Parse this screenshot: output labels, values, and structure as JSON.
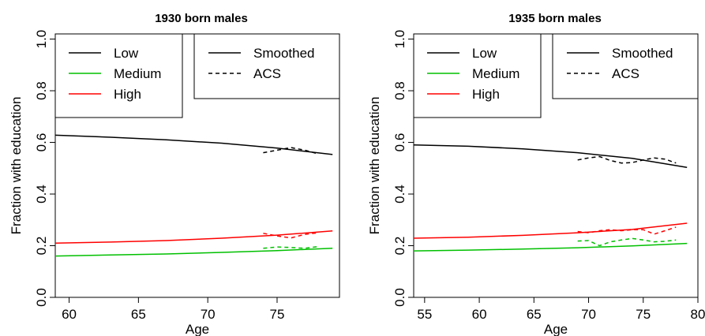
{
  "chart_data": [
    {
      "type": "line",
      "title": "1930 born males",
      "xlabel": "Age",
      "ylabel": "Fraction with education",
      "xlim": [
        59,
        79.5
      ],
      "ylim": [
        0,
        1.02
      ],
      "xticks": [
        60,
        65,
        70,
        75
      ],
      "yticks": [
        "0.0",
        "0.2",
        "0.4",
        "0.6",
        "0.8",
        "1.0"
      ],
      "legend_education": [
        "Low",
        "Medium",
        "High"
      ],
      "legend_type": [
        "Smoothed",
        "ACS"
      ],
      "colors": {
        "low": "#000000",
        "medium": "#00c000",
        "high": "#ff0000"
      },
      "series": [
        {
          "name": "Low",
          "style": "Smoothed",
          "color": "#000000",
          "x": [
            59,
            63,
            67,
            71,
            75,
            79
          ],
          "y": [
            0.628,
            0.62,
            0.61,
            0.597,
            0.578,
            0.553
          ]
        },
        {
          "name": "Medium",
          "style": "Smoothed",
          "color": "#00c000",
          "x": [
            59,
            63,
            67,
            71,
            75,
            79
          ],
          "y": [
            0.16,
            0.164,
            0.168,
            0.174,
            0.181,
            0.19
          ]
        },
        {
          "name": "High",
          "style": "Smoothed",
          "color": "#ff0000",
          "x": [
            59,
            63,
            67,
            71,
            75,
            79
          ],
          "y": [
            0.21,
            0.214,
            0.22,
            0.229,
            0.241,
            0.257
          ]
        },
        {
          "name": "Low",
          "style": "ACS",
          "color": "#000000",
          "x": [
            74,
            75,
            76,
            77,
            78
          ],
          "y": [
            0.56,
            0.57,
            0.58,
            0.57,
            0.555
          ]
        },
        {
          "name": "Medium",
          "style": "ACS",
          "color": "#00c000",
          "x": [
            74,
            75,
            76,
            77,
            78
          ],
          "y": [
            0.19,
            0.195,
            0.193,
            0.19,
            0.197
          ]
        },
        {
          "name": "High",
          "style": "ACS",
          "color": "#ff0000",
          "x": [
            74,
            75,
            76,
            77,
            78
          ],
          "y": [
            0.248,
            0.238,
            0.23,
            0.244,
            0.25
          ]
        }
      ]
    },
    {
      "type": "line",
      "title": "1935 born males",
      "xlabel": "Age",
      "ylabel": "Fraction with education",
      "xlim": [
        54,
        80
      ],
      "ylim": [
        0,
        1.02
      ],
      "xticks": [
        55,
        60,
        65,
        70,
        75,
        80
      ],
      "yticks": [
        "0.0",
        "0.2",
        "0.4",
        "0.6",
        "0.8",
        "1.0"
      ],
      "legend_education": [
        "Low",
        "Medium",
        "High"
      ],
      "legend_type": [
        "Smoothed",
        "ACS"
      ],
      "colors": {
        "low": "#000000",
        "medium": "#00c000",
        "high": "#ff0000"
      },
      "series": [
        {
          "name": "Low",
          "style": "Smoothed",
          "color": "#000000",
          "x": [
            54,
            59,
            64,
            69,
            74,
            79
          ],
          "y": [
            0.59,
            0.585,
            0.575,
            0.56,
            0.538,
            0.503
          ]
        },
        {
          "name": "Medium",
          "style": "Smoothed",
          "color": "#00c000",
          "x": [
            54,
            59,
            64,
            69,
            74,
            79
          ],
          "y": [
            0.18,
            0.183,
            0.187,
            0.192,
            0.199,
            0.209
          ]
        },
        {
          "name": "High",
          "style": "Smoothed",
          "color": "#ff0000",
          "x": [
            54,
            59,
            64,
            69,
            74,
            79
          ],
          "y": [
            0.229,
            0.233,
            0.24,
            0.25,
            0.263,
            0.287
          ]
        },
        {
          "name": "Low",
          "style": "ACS",
          "color": "#000000",
          "x": [
            69,
            70,
            71,
            72,
            73,
            74,
            75,
            76,
            77,
            78
          ],
          "y": [
            0.532,
            0.54,
            0.545,
            0.53,
            0.52,
            0.522,
            0.532,
            0.54,
            0.535,
            0.52
          ]
        },
        {
          "name": "Medium",
          "style": "ACS",
          "color": "#00c000",
          "x": [
            69,
            70,
            71,
            72,
            73,
            74,
            75,
            76,
            77,
            78
          ],
          "y": [
            0.218,
            0.22,
            0.2,
            0.215,
            0.222,
            0.228,
            0.222,
            0.215,
            0.217,
            0.222
          ]
        },
        {
          "name": "High",
          "style": "ACS",
          "color": "#ff0000",
          "x": [
            69,
            70,
            71,
            72,
            73,
            74,
            75,
            76,
            77,
            78
          ],
          "y": [
            0.255,
            0.25,
            0.258,
            0.262,
            0.258,
            0.262,
            0.262,
            0.245,
            0.258,
            0.272
          ]
        }
      ]
    }
  ]
}
